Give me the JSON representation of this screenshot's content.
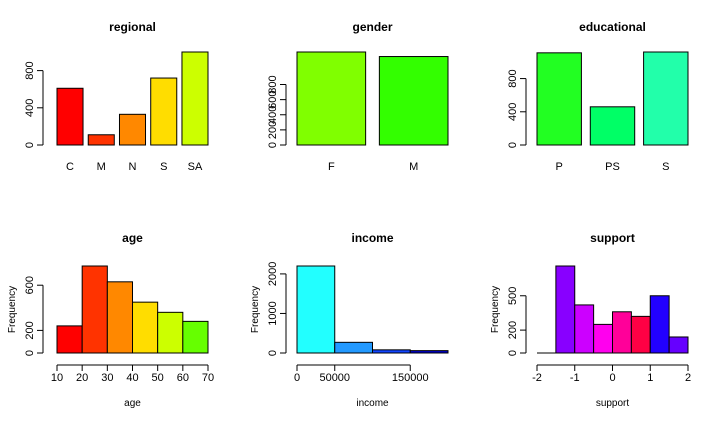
{
  "chart_data": [
    {
      "type": "bar",
      "title": "regional",
      "categories": [
        "C",
        "M",
        "N",
        "S",
        "SA"
      ],
      "values": [
        610,
        110,
        330,
        720,
        1000
      ],
      "colors": [
        "#FF0000",
        "#FF3300",
        "#FF8800",
        "#FFDD00",
        "#CCFF00"
      ],
      "yticks": [
        0,
        400,
        800
      ],
      "ylim": [
        0,
        1000
      ],
      "xlabel": "",
      "ylabel": ""
    },
    {
      "type": "bar",
      "title": "gender",
      "categories": [
        "F",
        "M"
      ],
      "values": [
        1230,
        1170
      ],
      "colors": [
        "#80FF00",
        "#33FF00"
      ],
      "yticks": [
        0,
        200,
        400,
        600,
        800
      ],
      "ylim": [
        0,
        1230
      ],
      "xlabel": "",
      "ylabel": ""
    },
    {
      "type": "bar",
      "title": "educational",
      "categories": [
        "P",
        "PS",
        "S"
      ],
      "values": [
        1110,
        460,
        1120
      ],
      "colors": [
        "#22FF22",
        "#00FF66",
        "#22FFAA"
      ],
      "yticks": [
        0,
        400,
        800
      ],
      "ylim": [
        0,
        1120
      ],
      "xlabel": "",
      "ylabel": ""
    },
    {
      "type": "histogram",
      "title": "age",
      "bins": [
        [
          10,
          20
        ],
        [
          20,
          30
        ],
        [
          30,
          40
        ],
        [
          40,
          50
        ],
        [
          50,
          60
        ],
        [
          60,
          70
        ]
      ],
      "values": [
        240,
        770,
        630,
        450,
        360,
        280
      ],
      "colors": [
        "#FF0000",
        "#FF3300",
        "#FF8800",
        "#FFDD00",
        "#CCFF00",
        "#66FF00"
      ],
      "xticks": [
        10,
        20,
        30,
        40,
        50,
        60,
        70
      ],
      "yticks": [
        0,
        200,
        600
      ],
      "ylim": [
        0,
        770
      ],
      "xlim": [
        10,
        70
      ],
      "xlabel": "age",
      "ylabel": "Frequency"
    },
    {
      "type": "histogram",
      "title": "income",
      "bins": [
        [
          0,
          50000
        ],
        [
          50000,
          100000
        ],
        [
          100000,
          150000
        ],
        [
          150000,
          200000
        ]
      ],
      "values": [
        2200,
        270,
        80,
        60
      ],
      "colors": [
        "#22FFFF",
        "#2299FF",
        "#1144FF",
        "#0000CC"
      ],
      "xticks": [
        0,
        50000,
        150000
      ],
      "yticks": [
        0,
        1000,
        2000
      ],
      "ylim": [
        0,
        2200
      ],
      "xlim": [
        0,
        200000
      ],
      "xlabel": "income",
      "ylabel": "Frequency"
    },
    {
      "type": "histogram",
      "title": "support",
      "bins": [
        [
          -1.5,
          -1.0
        ],
        [
          -1.0,
          -0.5
        ],
        [
          -0.5,
          0.0
        ],
        [
          0.0,
          0.5
        ],
        [
          0.5,
          1.0
        ],
        [
          1.0,
          1.5
        ],
        [
          1.5,
          2.0
        ]
      ],
      "values": [
        760,
        420,
        250,
        360,
        320,
        500,
        140
      ],
      "colors": [
        "#8800FF",
        "#CC00FF",
        "#FF00EE",
        "#FF0099",
        "#FF0044",
        "#2200FF",
        "#6600FF"
      ],
      "xticks": [
        -2,
        -1,
        0,
        1,
        2
      ],
      "yticks": [
        0,
        200,
        500
      ],
      "ylim": [
        0,
        760
      ],
      "xlim": [
        -2,
        2
      ],
      "xlabel": "support",
      "ylabel": "Frequency"
    }
  ]
}
